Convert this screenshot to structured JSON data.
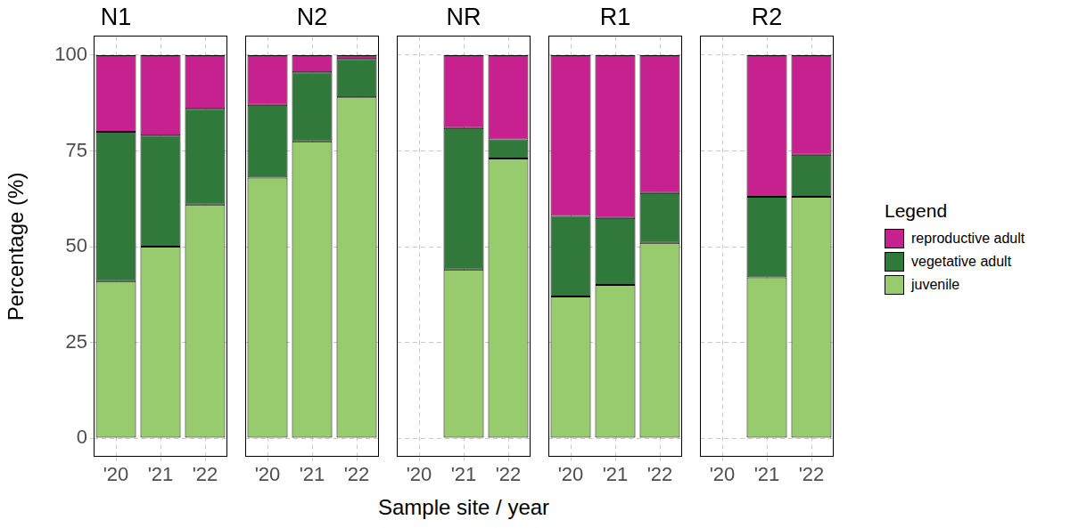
{
  "x_label": "Sample site / year",
  "y_label": "Percentage (%)",
  "legend_title": "Legend",
  "legend": "right",
  "chart_data": [
    {
      "type": "bar",
      "title": "N1",
      "categories": [
        "'20",
        "'21",
        "'22"
      ],
      "stacked": true,
      "grid": true,
      "ylim": [
        -5,
        105
      ],
      "yticks": [
        0,
        25,
        50,
        75,
        100
      ],
      "series": [
        {
          "name": "juvenile",
          "color": "#98cb6e",
          "values": [
            41,
            50,
            61
          ]
        },
        {
          "name": "vegetative adult",
          "color": "#31793a",
          "values": [
            39,
            29,
            25
          ]
        },
        {
          "name": "reproductive adult",
          "color": "#c7208f",
          "values": [
            20,
            21,
            14
          ]
        }
      ]
    },
    {
      "type": "bar",
      "title": "N2",
      "categories": [
        "'20",
        "'21",
        "'22"
      ],
      "stacked": true,
      "grid": true,
      "ylim": [
        -5,
        105
      ],
      "yticks": [
        0,
        25,
        50,
        75,
        100
      ],
      "series": [
        {
          "name": "juvenile",
          "color": "#98cb6e",
          "values": [
            68,
            77.5,
            89
          ]
        },
        {
          "name": "vegetative adult",
          "color": "#31793a",
          "values": [
            19,
            18,
            10
          ]
        },
        {
          "name": "reproductive adult",
          "color": "#c7208f",
          "values": [
            13,
            4.5,
            1
          ]
        }
      ]
    },
    {
      "type": "bar",
      "title": "NR",
      "categories": [
        "'20",
        "'21",
        "'22"
      ],
      "stacked": true,
      "grid": true,
      "ylim": [
        -5,
        105
      ],
      "yticks": [
        0,
        25,
        50,
        75,
        100
      ],
      "series": [
        {
          "name": "juvenile",
          "color": "#98cb6e",
          "values": [
            null,
            44,
            73
          ]
        },
        {
          "name": "vegetative adult",
          "color": "#31793a",
          "values": [
            null,
            37,
            5
          ]
        },
        {
          "name": "reproductive adult",
          "color": "#c7208f",
          "values": [
            null,
            19,
            22
          ]
        }
      ]
    },
    {
      "type": "bar",
      "title": "R1",
      "categories": [
        "'20",
        "'21",
        "'22"
      ],
      "stacked": true,
      "grid": true,
      "ylim": [
        -5,
        105
      ],
      "yticks": [
        0,
        25,
        50,
        75,
        100
      ],
      "series": [
        {
          "name": "juvenile",
          "color": "#98cb6e",
          "values": [
            37,
            40,
            51
          ]
        },
        {
          "name": "vegetative adult",
          "color": "#31793a",
          "values": [
            21,
            17.5,
            13
          ]
        },
        {
          "name": "reproductive adult",
          "color": "#c7208f",
          "values": [
            42,
            42.5,
            36
          ]
        }
      ]
    },
    {
      "type": "bar",
      "title": "R2",
      "categories": [
        "'20",
        "'21",
        "'22"
      ],
      "stacked": true,
      "grid": true,
      "ylim": [
        -5,
        105
      ],
      "yticks": [
        0,
        25,
        50,
        75,
        100
      ],
      "series": [
        {
          "name": "juvenile",
          "color": "#98cb6e",
          "values": [
            null,
            42,
            63
          ]
        },
        {
          "name": "vegetative adult",
          "color": "#31793a",
          "values": [
            null,
            21,
            11
          ]
        },
        {
          "name": "reproductive adult",
          "color": "#c7208f",
          "values": [
            null,
            37,
            26
          ]
        }
      ]
    }
  ]
}
